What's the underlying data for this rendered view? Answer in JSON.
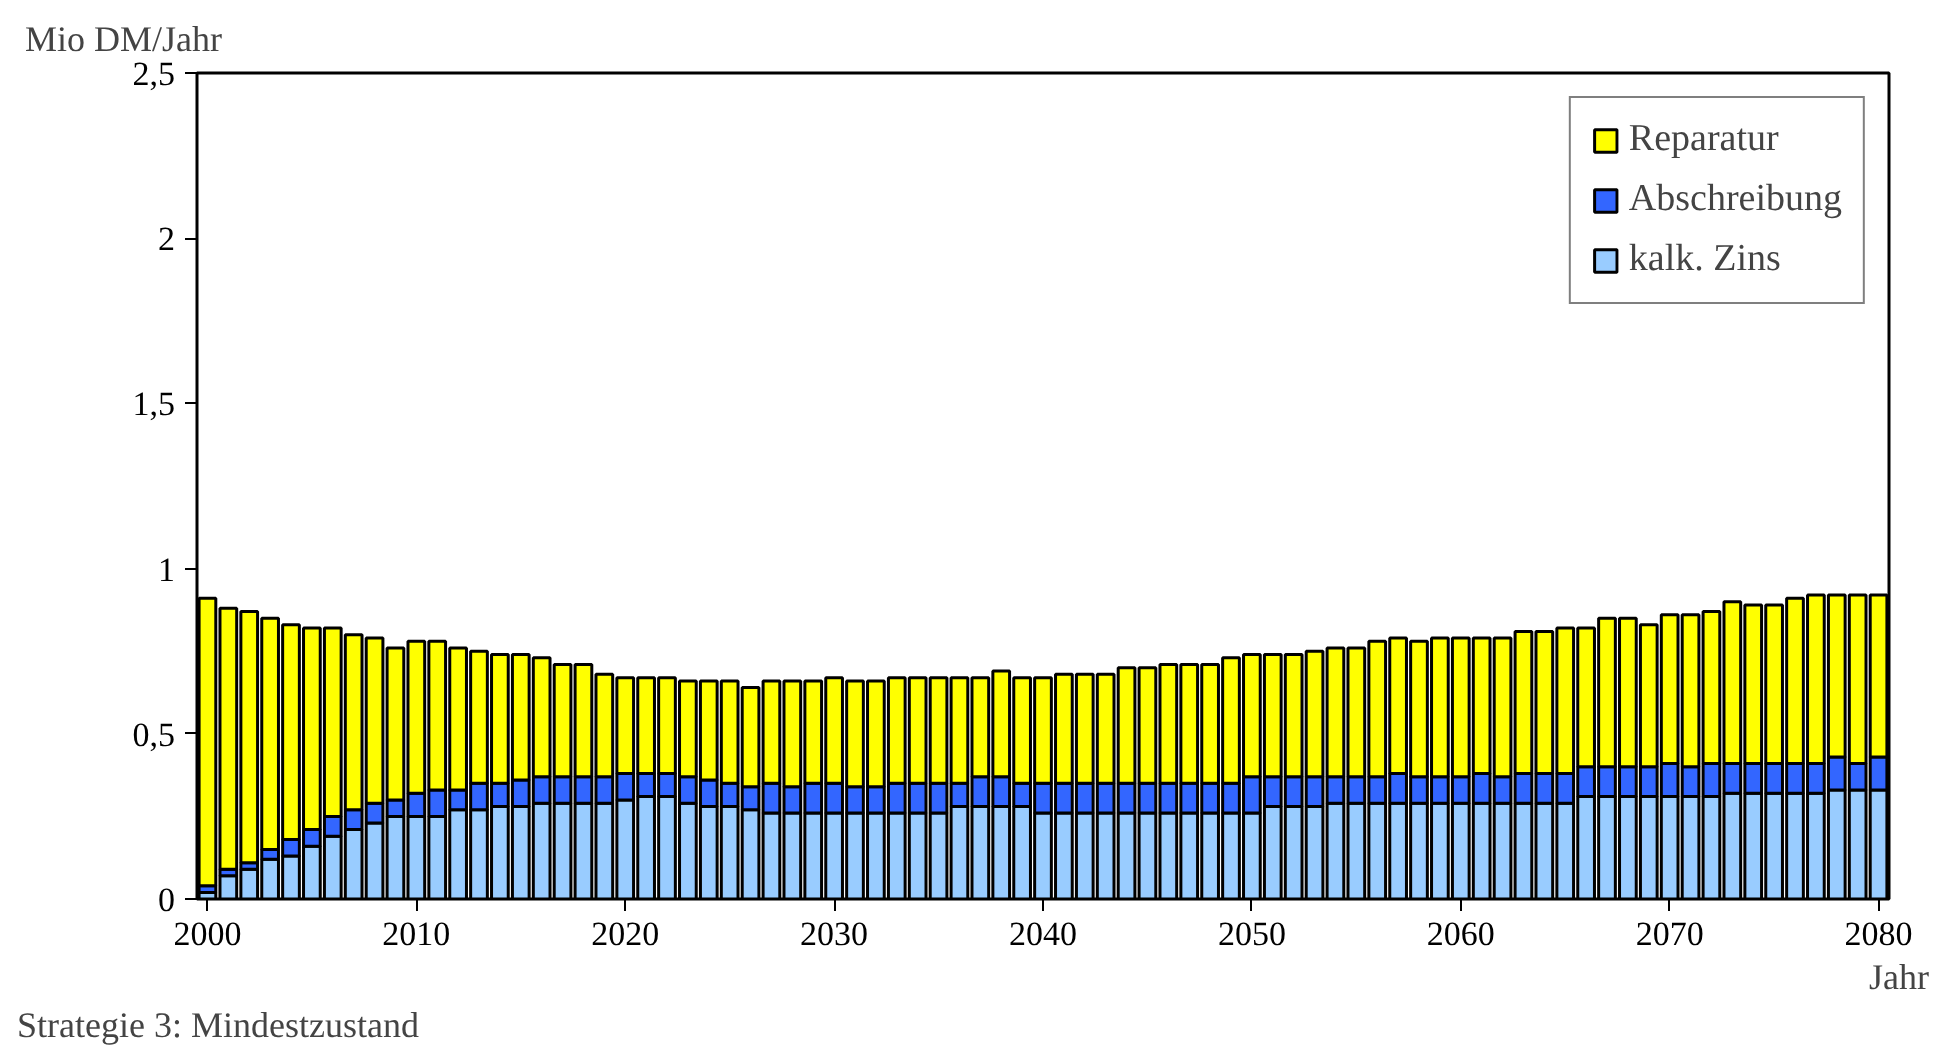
{
  "chart_data": {
    "type": "bar",
    "stacked": true,
    "ylabel": "Mio DM/Jahr",
    "xlabel": "Jahr",
    "annotations": [
      "Strategie 3: Mindestzustand"
    ],
    "x": [
      2000,
      2001,
      2002,
      2003,
      2004,
      2005,
      2006,
      2007,
      2008,
      2009,
      2010,
      2011,
      2012,
      2013,
      2014,
      2015,
      2016,
      2017,
      2018,
      2019,
      2020,
      2021,
      2022,
      2023,
      2024,
      2025,
      2026,
      2027,
      2028,
      2029,
      2030,
      2031,
      2032,
      2033,
      2034,
      2035,
      2036,
      2037,
      2038,
      2039,
      2040,
      2041,
      2042,
      2043,
      2044,
      2045,
      2046,
      2047,
      2048,
      2049,
      2050,
      2051,
      2052,
      2053,
      2054,
      2055,
      2056,
      2057,
      2058,
      2059,
      2060,
      2061,
      2062,
      2063,
      2064,
      2065,
      2066,
      2067,
      2068,
      2069,
      2070,
      2071,
      2072,
      2073,
      2074,
      2075,
      2076,
      2077,
      2078,
      2079,
      2080
    ],
    "xlim": [
      1999.5,
      2080.5
    ],
    "xticks": [
      2000,
      2010,
      2020,
      2030,
      2040,
      2050,
      2060,
      2070,
      2080
    ],
    "ylim": [
      0,
      2.5
    ],
    "yticks": [
      0,
      {
        "value": 0.5,
        "label": "0,5"
      },
      1,
      {
        "value": 1.5,
        "label": "1,5"
      },
      2,
      {
        "value": 2.5,
        "label": "2,5"
      }
    ],
    "legend": "top right",
    "series": [
      {
        "name": "kalk. Zins",
        "color": "#99ccff",
        "values": [
          0.02,
          0.07,
          0.09,
          0.12,
          0.13,
          0.16,
          0.19,
          0.21,
          0.23,
          0.25,
          0.25,
          0.25,
          0.27,
          0.27,
          0.28,
          0.28,
          0.29,
          0.29,
          0.29,
          0.29,
          0.3,
          0.31,
          0.31,
          0.29,
          0.28,
          0.28,
          0.27,
          0.26,
          0.26,
          0.26,
          0.26,
          0.26,
          0.26,
          0.26,
          0.26,
          0.26,
          0.28,
          0.28,
          0.28,
          0.28,
          0.26,
          0.26,
          0.26,
          0.26,
          0.26,
          0.26,
          0.26,
          0.26,
          0.26,
          0.26,
          0.26,
          0.28,
          0.28,
          0.28,
          0.29,
          0.29,
          0.29,
          0.29,
          0.29,
          0.29,
          0.29,
          0.29,
          0.29,
          0.29,
          0.29,
          0.29,
          0.31,
          0.31,
          0.31,
          0.31,
          0.31,
          0.31,
          0.31,
          0.32,
          0.32,
          0.32,
          0.32,
          0.32,
          0.33,
          0.33,
          0.33
        ]
      },
      {
        "name": "Abschreibung",
        "color": "#3366ff",
        "values": [
          0.02,
          0.02,
          0.02,
          0.03,
          0.05,
          0.05,
          0.06,
          0.06,
          0.06,
          0.05,
          0.07,
          0.08,
          0.06,
          0.08,
          0.07,
          0.08,
          0.08,
          0.08,
          0.08,
          0.08,
          0.08,
          0.07,
          0.07,
          0.08,
          0.08,
          0.07,
          0.07,
          0.09,
          0.08,
          0.09,
          0.09,
          0.08,
          0.08,
          0.09,
          0.09,
          0.09,
          0.07,
          0.09,
          0.09,
          0.07,
          0.09,
          0.09,
          0.09,
          0.09,
          0.09,
          0.09,
          0.09,
          0.09,
          0.09,
          0.09,
          0.11,
          0.09,
          0.09,
          0.09,
          0.08,
          0.08,
          0.08,
          0.09,
          0.08,
          0.08,
          0.08,
          0.09,
          0.08,
          0.09,
          0.09,
          0.09,
          0.09,
          0.09,
          0.09,
          0.09,
          0.1,
          0.09,
          0.1,
          0.09,
          0.09,
          0.09,
          0.09,
          0.09,
          0.1,
          0.08,
          0.1
        ]
      },
      {
        "name": "Reparatur",
        "color": "#ffff00",
        "values": [
          0.87,
          0.79,
          0.76,
          0.7,
          0.65,
          0.61,
          0.57,
          0.53,
          0.5,
          0.46,
          0.46,
          0.45,
          0.43,
          0.4,
          0.39,
          0.38,
          0.36,
          0.34,
          0.34,
          0.31,
          0.29,
          0.29,
          0.29,
          0.29,
          0.3,
          0.31,
          0.3,
          0.31,
          0.32,
          0.31,
          0.32,
          0.32,
          0.32,
          0.32,
          0.32,
          0.32,
          0.32,
          0.3,
          0.32,
          0.32,
          0.32,
          0.33,
          0.33,
          0.33,
          0.35,
          0.35,
          0.36,
          0.36,
          0.36,
          0.38,
          0.37,
          0.37,
          0.37,
          0.38,
          0.39,
          0.39,
          0.41,
          0.41,
          0.41,
          0.42,
          0.42,
          0.41,
          0.42,
          0.43,
          0.43,
          0.44,
          0.42,
          0.45,
          0.45,
          0.43,
          0.45,
          0.46,
          0.46,
          0.49,
          0.48,
          0.48,
          0.5,
          0.51,
          0.49,
          0.51,
          0.49
        ]
      }
    ]
  }
}
